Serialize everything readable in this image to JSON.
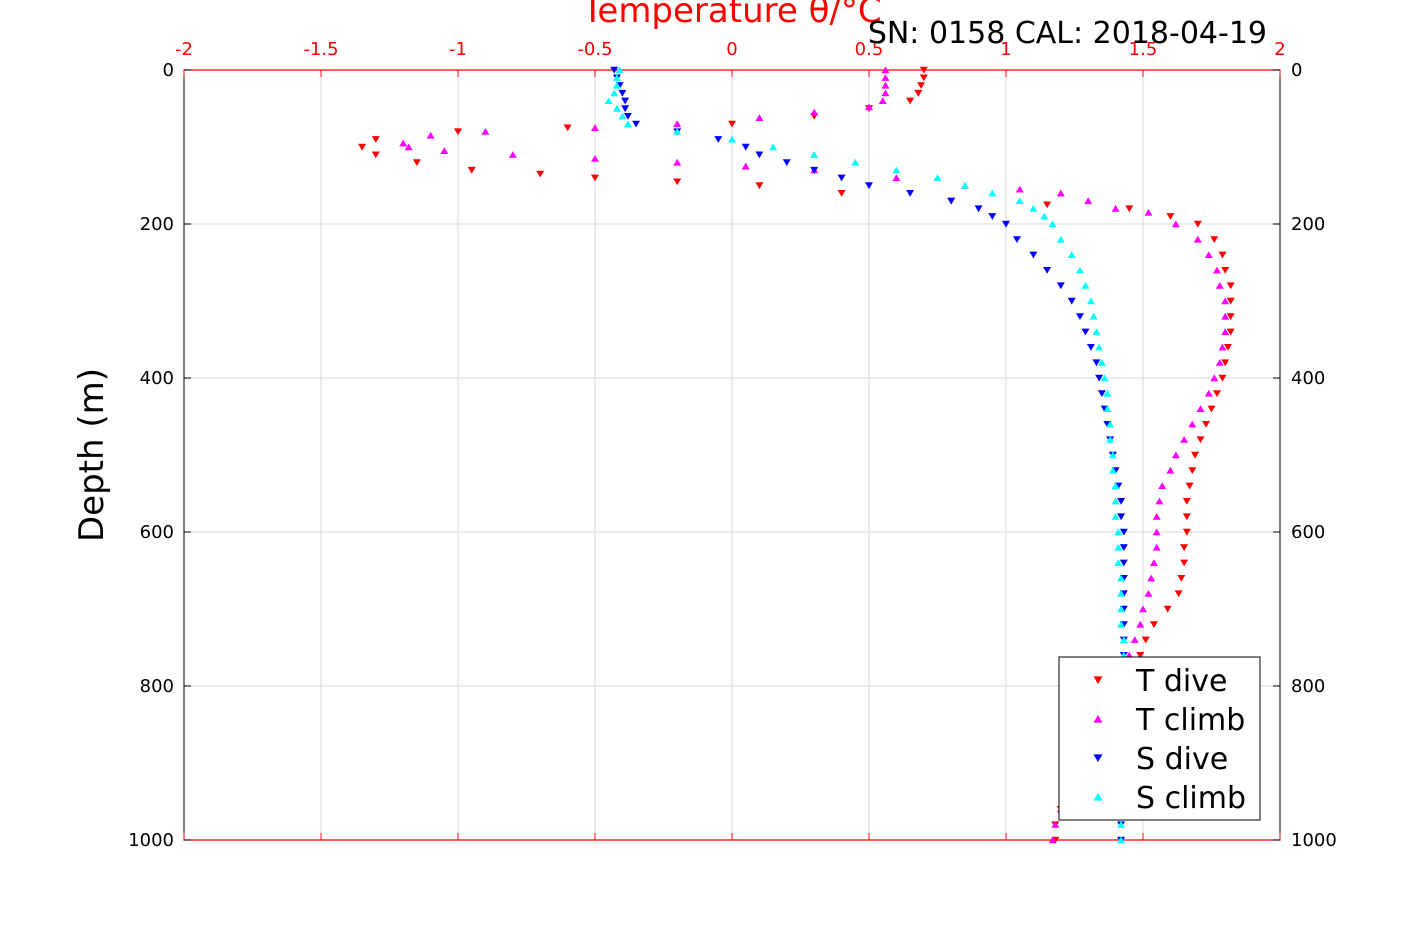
{
  "chart_data": {
    "type": "scatter",
    "x_title": "Temperature θ/°C",
    "y_title": "Depth (m)",
    "annotation": "SN: 0158  CAL: 2018-04-19",
    "xlim": [
      -2,
      2
    ],
    "ylim": [
      0,
      1000
    ],
    "y_reversed": true,
    "x_ticks": [
      "-2",
      "-1.5",
      "-1",
      "-0.5",
      "0",
      "0.5",
      "1",
      "1.5",
      "2"
    ],
    "y_ticks": [
      "0",
      "200",
      "400",
      "600",
      "800",
      "1000"
    ],
    "grid": true,
    "legend_position": "bottom-right",
    "colors": {
      "axis_top": "#ff0000",
      "axis_side": "#000000"
    },
    "series": [
      {
        "name": "T dive",
        "color": "#ff0000",
        "marker": "triangle-down",
        "points": [
          [
            0.7,
            0
          ],
          [
            0.7,
            10
          ],
          [
            0.69,
            20
          ],
          [
            0.68,
            30
          ],
          [
            0.65,
            40
          ],
          [
            0.5,
            50
          ],
          [
            0.3,
            60
          ],
          [
            0.0,
            70
          ],
          [
            -0.6,
            75
          ],
          [
            -1.0,
            80
          ],
          [
            -1.3,
            90
          ],
          [
            -1.35,
            100
          ],
          [
            -1.3,
            110
          ],
          [
            -1.15,
            120
          ],
          [
            -0.95,
            130
          ],
          [
            -0.7,
            135
          ],
          [
            -0.5,
            140
          ],
          [
            -0.2,
            145
          ],
          [
            0.1,
            150
          ],
          [
            0.4,
            160
          ],
          [
            0.8,
            170
          ],
          [
            1.15,
            175
          ],
          [
            1.45,
            180
          ],
          [
            1.6,
            190
          ],
          [
            1.7,
            200
          ],
          [
            1.76,
            220
          ],
          [
            1.79,
            240
          ],
          [
            1.8,
            260
          ],
          [
            1.82,
            280
          ],
          [
            1.82,
            300
          ],
          [
            1.82,
            320
          ],
          [
            1.82,
            340
          ],
          [
            1.81,
            360
          ],
          [
            1.8,
            380
          ],
          [
            1.79,
            400
          ],
          [
            1.77,
            420
          ],
          [
            1.75,
            440
          ],
          [
            1.73,
            460
          ],
          [
            1.71,
            480
          ],
          [
            1.69,
            500
          ],
          [
            1.68,
            520
          ],
          [
            1.67,
            540
          ],
          [
            1.66,
            560
          ],
          [
            1.66,
            580
          ],
          [
            1.66,
            600
          ],
          [
            1.65,
            620
          ],
          [
            1.65,
            640
          ],
          [
            1.64,
            660
          ],
          [
            1.63,
            680
          ],
          [
            1.59,
            700
          ],
          [
            1.54,
            720
          ],
          [
            1.51,
            740
          ],
          [
            1.49,
            760
          ],
          [
            1.46,
            780
          ],
          [
            1.42,
            800
          ],
          [
            1.38,
            820
          ],
          [
            1.34,
            840
          ],
          [
            1.3,
            860
          ],
          [
            1.27,
            880
          ],
          [
            1.25,
            900
          ],
          [
            1.23,
            920
          ],
          [
            1.21,
            940
          ],
          [
            1.2,
            960
          ],
          [
            1.18,
            980
          ],
          [
            1.18,
            1000
          ]
        ]
      },
      {
        "name": "T climb",
        "color": "#ff00ff",
        "marker": "triangle-up",
        "points": [
          [
            0.56,
            0
          ],
          [
            0.56,
            10
          ],
          [
            0.56,
            20
          ],
          [
            0.56,
            30
          ],
          [
            0.55,
            40
          ],
          [
            0.5,
            48
          ],
          [
            0.3,
            55
          ],
          [
            0.1,
            62
          ],
          [
            -0.2,
            70
          ],
          [
            -0.5,
            75
          ],
          [
            -0.9,
            80
          ],
          [
            -1.1,
            85
          ],
          [
            -1.2,
            95
          ],
          [
            -1.18,
            100
          ],
          [
            -1.05,
            105
          ],
          [
            -0.8,
            110
          ],
          [
            -0.5,
            115
          ],
          [
            -0.2,
            120
          ],
          [
            0.05,
            125
          ],
          [
            0.3,
            130
          ],
          [
            0.6,
            140
          ],
          [
            0.85,
            150
          ],
          [
            1.05,
            155
          ],
          [
            1.2,
            160
          ],
          [
            1.3,
            170
          ],
          [
            1.4,
            180
          ],
          [
            1.52,
            185
          ],
          [
            1.62,
            200
          ],
          [
            1.7,
            220
          ],
          [
            1.74,
            240
          ],
          [
            1.77,
            260
          ],
          [
            1.78,
            280
          ],
          [
            1.8,
            300
          ],
          [
            1.8,
            320
          ],
          [
            1.8,
            340
          ],
          [
            1.79,
            360
          ],
          [
            1.78,
            380
          ],
          [
            1.76,
            400
          ],
          [
            1.74,
            420
          ],
          [
            1.71,
            440
          ],
          [
            1.68,
            460
          ],
          [
            1.65,
            480
          ],
          [
            1.62,
            500
          ],
          [
            1.6,
            520
          ],
          [
            1.57,
            540
          ],
          [
            1.56,
            560
          ],
          [
            1.55,
            580
          ],
          [
            1.55,
            600
          ],
          [
            1.55,
            620
          ],
          [
            1.54,
            640
          ],
          [
            1.53,
            660
          ],
          [
            1.52,
            680
          ],
          [
            1.5,
            700
          ],
          [
            1.49,
            720
          ],
          [
            1.47,
            740
          ],
          [
            1.45,
            760
          ],
          [
            1.42,
            780
          ],
          [
            1.39,
            800
          ],
          [
            1.36,
            820
          ],
          [
            1.33,
            840
          ],
          [
            1.3,
            860
          ],
          [
            1.27,
            880
          ],
          [
            1.25,
            900
          ],
          [
            1.23,
            920
          ],
          [
            1.21,
            940
          ],
          [
            1.2,
            960
          ],
          [
            1.18,
            980
          ],
          [
            1.17,
            1000
          ]
        ]
      },
      {
        "name": "S dive",
        "color": "#0000ff",
        "marker": "triangle-down",
        "points": [
          [
            -0.43,
            0
          ],
          [
            -0.42,
            10
          ],
          [
            -0.41,
            20
          ],
          [
            -0.4,
            30
          ],
          [
            -0.39,
            40
          ],
          [
            -0.39,
            50
          ],
          [
            -0.38,
            60
          ],
          [
            -0.35,
            70
          ],
          [
            -0.2,
            80
          ],
          [
            -0.05,
            90
          ],
          [
            0.05,
            100
          ],
          [
            0.1,
            110
          ],
          [
            0.2,
            120
          ],
          [
            0.3,
            130
          ],
          [
            0.4,
            140
          ],
          [
            0.5,
            150
          ],
          [
            0.65,
            160
          ],
          [
            0.8,
            170
          ],
          [
            0.9,
            180
          ],
          [
            0.95,
            190
          ],
          [
            1.0,
            200
          ],
          [
            1.04,
            220
          ],
          [
            1.1,
            240
          ],
          [
            1.15,
            260
          ],
          [
            1.2,
            280
          ],
          [
            1.24,
            300
          ],
          [
            1.27,
            320
          ],
          [
            1.29,
            340
          ],
          [
            1.31,
            360
          ],
          [
            1.33,
            380
          ],
          [
            1.34,
            400
          ],
          [
            1.35,
            420
          ],
          [
            1.36,
            440
          ],
          [
            1.37,
            460
          ],
          [
            1.38,
            480
          ],
          [
            1.39,
            500
          ],
          [
            1.4,
            520
          ],
          [
            1.41,
            540
          ],
          [
            1.42,
            560
          ],
          [
            1.42,
            580
          ],
          [
            1.43,
            600
          ],
          [
            1.43,
            620
          ],
          [
            1.43,
            640
          ],
          [
            1.43,
            660
          ],
          [
            1.43,
            680
          ],
          [
            1.43,
            700
          ],
          [
            1.43,
            720
          ],
          [
            1.43,
            740
          ],
          [
            1.43,
            760
          ],
          [
            1.43,
            780
          ],
          [
            1.43,
            800
          ],
          [
            1.43,
            820
          ],
          [
            1.43,
            840
          ],
          [
            1.43,
            860
          ],
          [
            1.42,
            880
          ],
          [
            1.42,
            900
          ],
          [
            1.42,
            920
          ],
          [
            1.42,
            940
          ],
          [
            1.42,
            960
          ],
          [
            1.42,
            980
          ],
          [
            1.42,
            1000
          ]
        ]
      },
      {
        "name": "S climb",
        "color": "#00ffff",
        "marker": "triangle-up",
        "points": [
          [
            -0.41,
            0
          ],
          [
            -0.42,
            10
          ],
          [
            -0.42,
            20
          ],
          [
            -0.43,
            30
          ],
          [
            -0.45,
            40
          ],
          [
            -0.42,
            50
          ],
          [
            -0.4,
            60
          ],
          [
            -0.38,
            70
          ],
          [
            -0.2,
            80
          ],
          [
            0.0,
            90
          ],
          [
            0.15,
            100
          ],
          [
            0.3,
            110
          ],
          [
            0.45,
            120
          ],
          [
            0.6,
            130
          ],
          [
            0.75,
            140
          ],
          [
            0.85,
            150
          ],
          [
            0.95,
            160
          ],
          [
            1.05,
            170
          ],
          [
            1.1,
            180
          ],
          [
            1.14,
            190
          ],
          [
            1.17,
            200
          ],
          [
            1.2,
            220
          ],
          [
            1.24,
            240
          ],
          [
            1.27,
            260
          ],
          [
            1.29,
            280
          ],
          [
            1.31,
            300
          ],
          [
            1.32,
            320
          ],
          [
            1.33,
            340
          ],
          [
            1.34,
            360
          ],
          [
            1.35,
            380
          ],
          [
            1.36,
            400
          ],
          [
            1.37,
            420
          ],
          [
            1.37,
            440
          ],
          [
            1.38,
            460
          ],
          [
            1.38,
            480
          ],
          [
            1.39,
            500
          ],
          [
            1.39,
            520
          ],
          [
            1.4,
            540
          ],
          [
            1.4,
            560
          ],
          [
            1.4,
            580
          ],
          [
            1.41,
            600
          ],
          [
            1.41,
            620
          ],
          [
            1.41,
            640
          ],
          [
            1.42,
            660
          ],
          [
            1.42,
            680
          ],
          [
            1.42,
            700
          ],
          [
            1.42,
            720
          ],
          [
            1.43,
            740
          ],
          [
            1.43,
            760
          ],
          [
            1.43,
            780
          ],
          [
            1.43,
            800
          ],
          [
            1.43,
            820
          ],
          [
            1.43,
            840
          ],
          [
            1.43,
            860
          ],
          [
            1.43,
            880
          ],
          [
            1.42,
            900
          ],
          [
            1.42,
            920
          ],
          [
            1.42,
            940
          ],
          [
            1.42,
            960
          ],
          [
            1.42,
            980
          ],
          [
            1.42,
            1000
          ]
        ]
      }
    ]
  }
}
